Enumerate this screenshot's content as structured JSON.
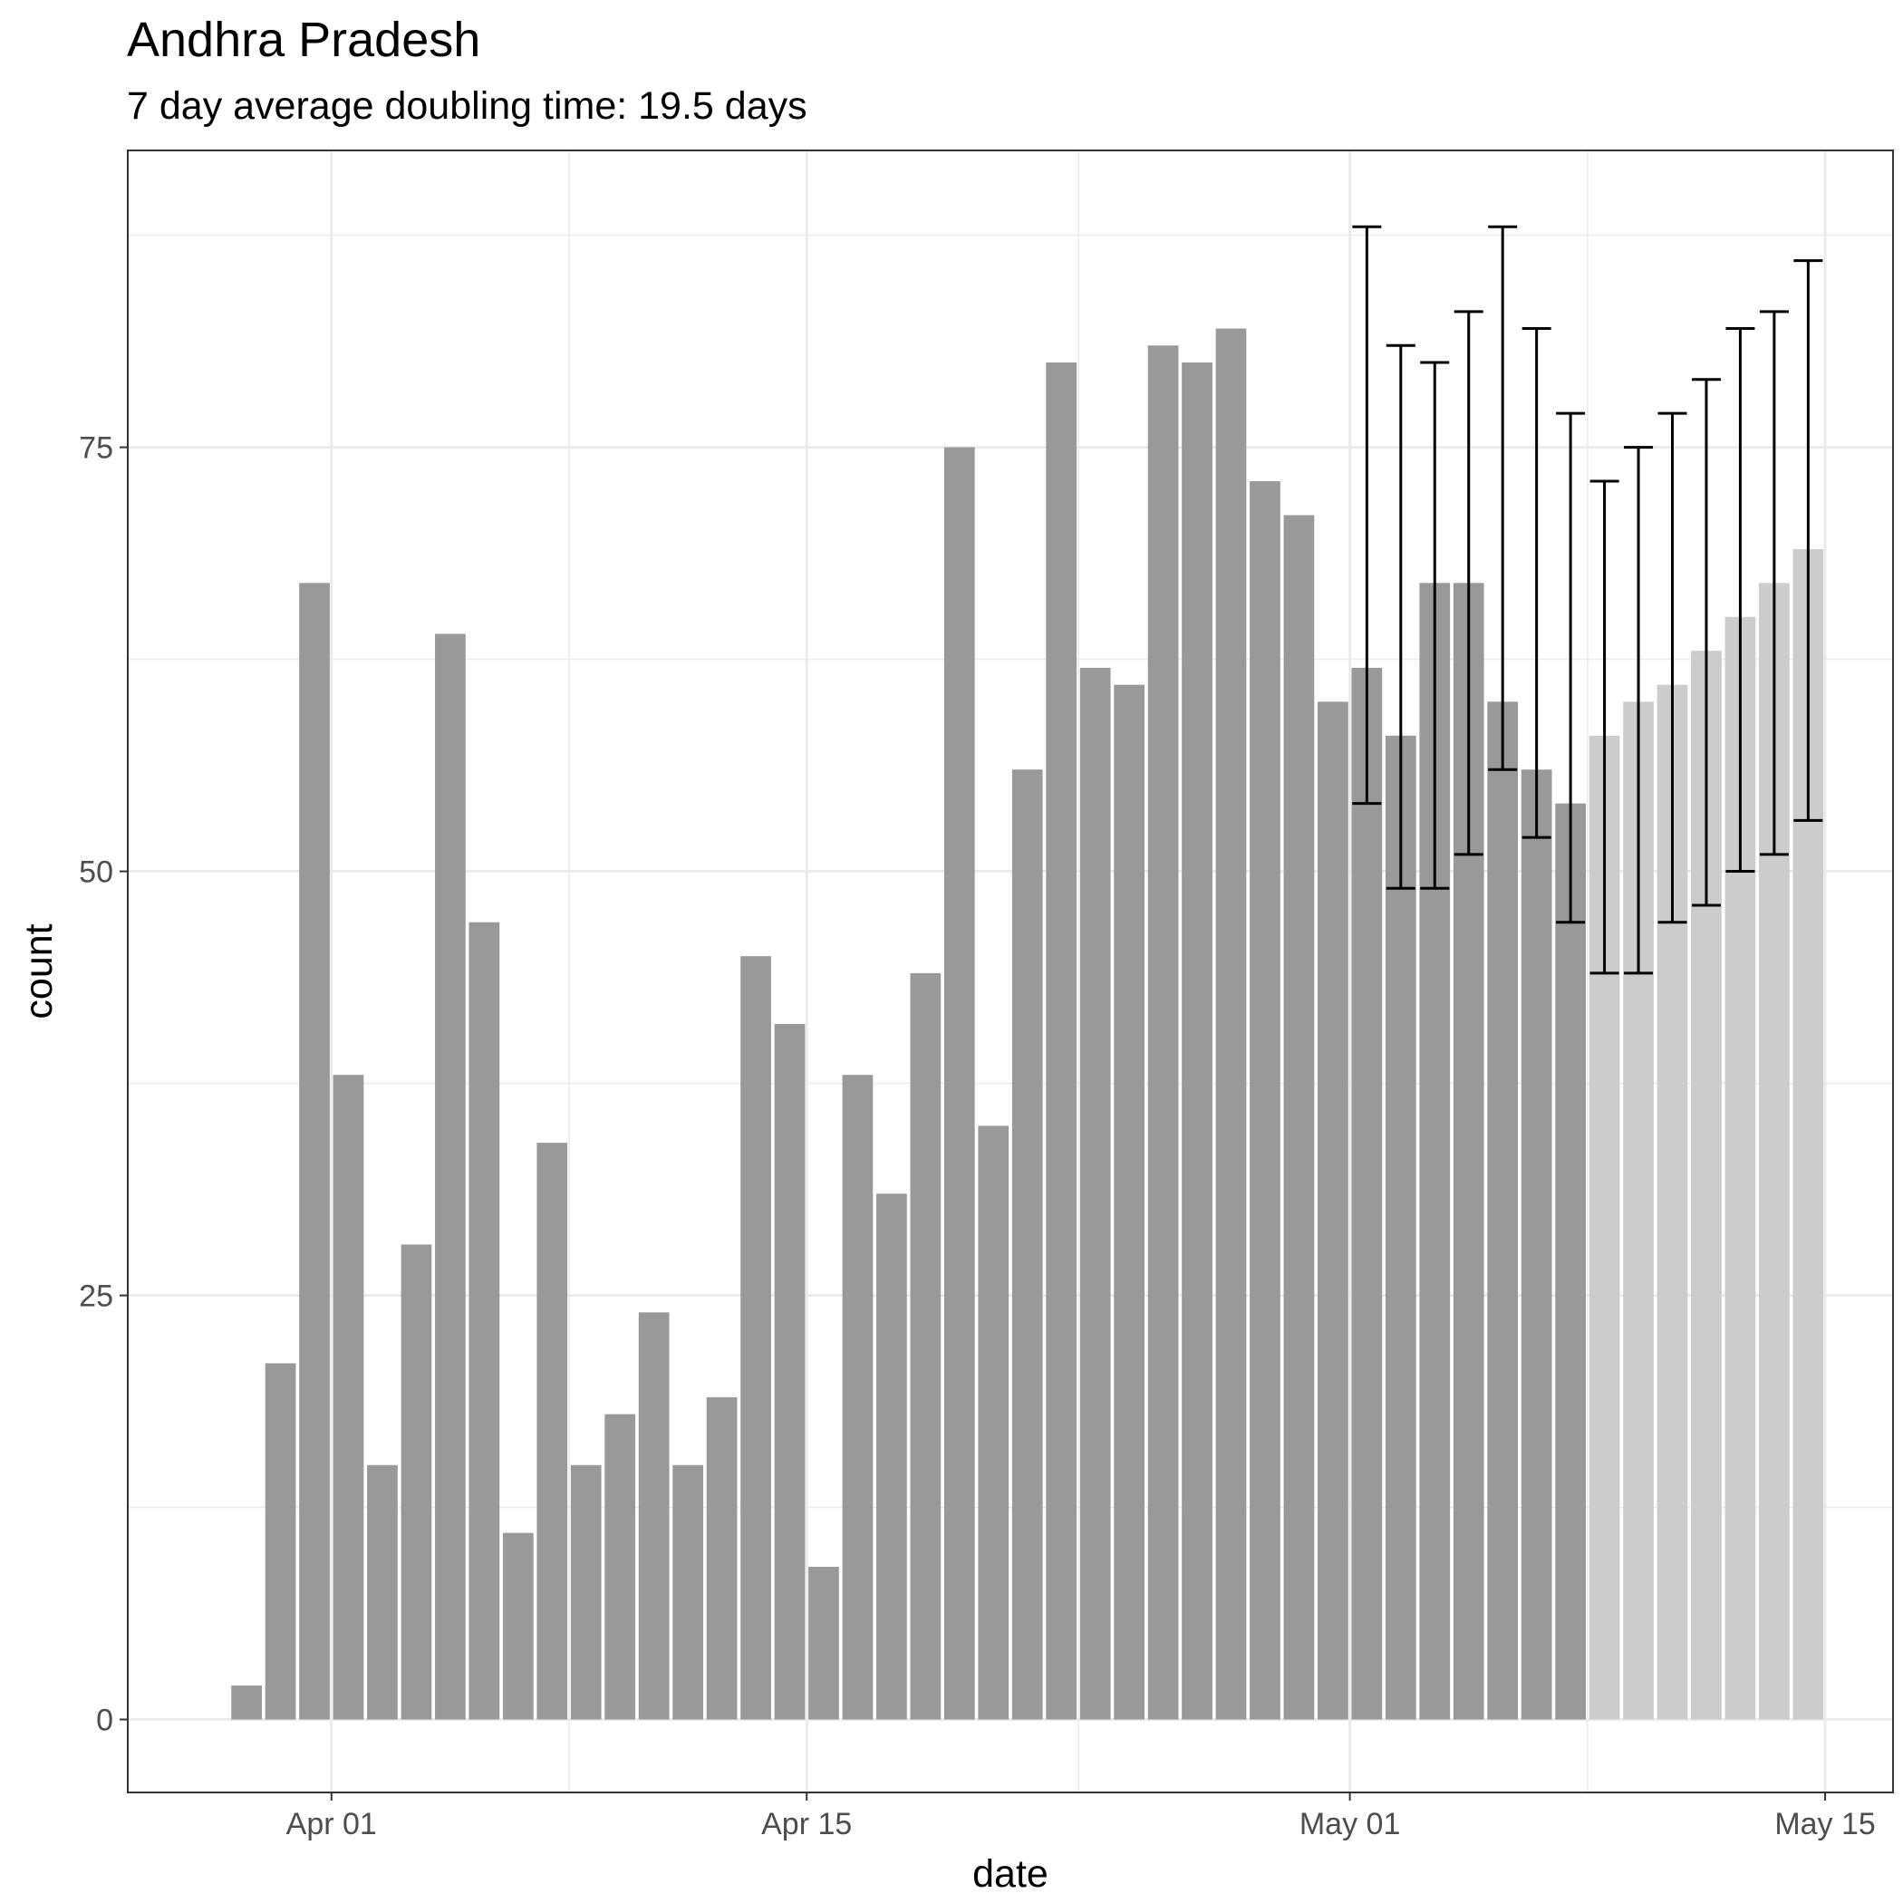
{
  "chart_data": {
    "type": "bar",
    "title": "Andhra Pradesh",
    "subtitle": "7 day average doubling time: 19.5 days",
    "xlabel": "date",
    "ylabel": "count",
    "ylim": [
      -4.3,
      92.5
    ],
    "xlim": [
      "2020-03-26",
      "2020-05-17"
    ],
    "grid": true,
    "colors": {
      "observed": "#999999",
      "projected": "#cccccc",
      "errorbar": "#000000",
      "grid": "#ebebeb",
      "border": "#333333"
    },
    "x_ticks": [
      {
        "date": "2020-04-01",
        "label": "Apr 01"
      },
      {
        "date": "2020-04-15",
        "label": "Apr 15"
      },
      {
        "date": "2020-05-01",
        "label": "May 01"
      },
      {
        "date": "2020-05-15",
        "label": "May 15"
      }
    ],
    "y_ticks": [
      {
        "value": 0,
        "label": "0"
      },
      {
        "value": 25,
        "label": "25"
      },
      {
        "value": 50,
        "label": "50"
      },
      {
        "value": 75,
        "label": "75"
      }
    ],
    "series": [
      {
        "kind": "observed",
        "points": [
          {
            "date": "2020-03-29",
            "value": 2
          },
          {
            "date": "2020-03-30",
            "value": 21
          },
          {
            "date": "2020-03-31",
            "value": 67
          },
          {
            "date": "2020-04-01",
            "value": 38
          },
          {
            "date": "2020-04-02",
            "value": 15
          },
          {
            "date": "2020-04-03",
            "value": 28
          },
          {
            "date": "2020-04-04",
            "value": 64
          },
          {
            "date": "2020-04-05",
            "value": 47
          },
          {
            "date": "2020-04-06",
            "value": 11
          },
          {
            "date": "2020-04-07",
            "value": 34
          },
          {
            "date": "2020-04-08",
            "value": 15
          },
          {
            "date": "2020-04-09",
            "value": 18
          },
          {
            "date": "2020-04-10",
            "value": 24
          },
          {
            "date": "2020-04-11",
            "value": 15
          },
          {
            "date": "2020-04-12",
            "value": 19
          },
          {
            "date": "2020-04-13",
            "value": 45
          },
          {
            "date": "2020-04-14",
            "value": 41
          },
          {
            "date": "2020-04-15",
            "value": 9
          },
          {
            "date": "2020-04-16",
            "value": 38
          },
          {
            "date": "2020-04-17",
            "value": 31
          },
          {
            "date": "2020-04-18",
            "value": 44
          },
          {
            "date": "2020-04-19",
            "value": 75
          },
          {
            "date": "2020-04-20",
            "value": 35
          },
          {
            "date": "2020-04-21",
            "value": 56
          },
          {
            "date": "2020-04-22",
            "value": 80
          },
          {
            "date": "2020-04-23",
            "value": 62
          },
          {
            "date": "2020-04-24",
            "value": 61
          },
          {
            "date": "2020-04-25",
            "value": 81
          },
          {
            "date": "2020-04-26",
            "value": 80
          },
          {
            "date": "2020-04-27",
            "value": 82
          },
          {
            "date": "2020-04-28",
            "value": 73
          },
          {
            "date": "2020-04-29",
            "value": 71
          },
          {
            "date": "2020-04-30",
            "value": 60
          },
          {
            "date": "2020-05-01",
            "value": 62,
            "lower": 54,
            "upper": 88
          },
          {
            "date": "2020-05-02",
            "value": 58,
            "lower": 49,
            "upper": 81
          },
          {
            "date": "2020-05-03",
            "value": 67,
            "lower": 49,
            "upper": 80
          },
          {
            "date": "2020-05-04",
            "value": 67,
            "lower": 51,
            "upper": 83
          },
          {
            "date": "2020-05-05",
            "value": 60,
            "lower": 56,
            "upper": 88
          },
          {
            "date": "2020-05-06",
            "value": 56,
            "lower": 52,
            "upper": 82
          },
          {
            "date": "2020-05-07",
            "value": 54,
            "lower": 47,
            "upper": 77
          }
        ]
      },
      {
        "kind": "projected",
        "points": [
          {
            "date": "2020-05-08",
            "value": 58,
            "lower": 44,
            "upper": 73
          },
          {
            "date": "2020-05-09",
            "value": 60,
            "lower": 44,
            "upper": 75
          },
          {
            "date": "2020-05-10",
            "value": 61,
            "lower": 47,
            "upper": 77
          },
          {
            "date": "2020-05-11",
            "value": 63,
            "lower": 48,
            "upper": 79
          },
          {
            "date": "2020-05-12",
            "value": 65,
            "lower": 50,
            "upper": 82
          },
          {
            "date": "2020-05-13",
            "value": 67,
            "lower": 51,
            "upper": 83
          },
          {
            "date": "2020-05-14",
            "value": 69,
            "lower": 53,
            "upper": 86
          }
        ]
      }
    ]
  }
}
